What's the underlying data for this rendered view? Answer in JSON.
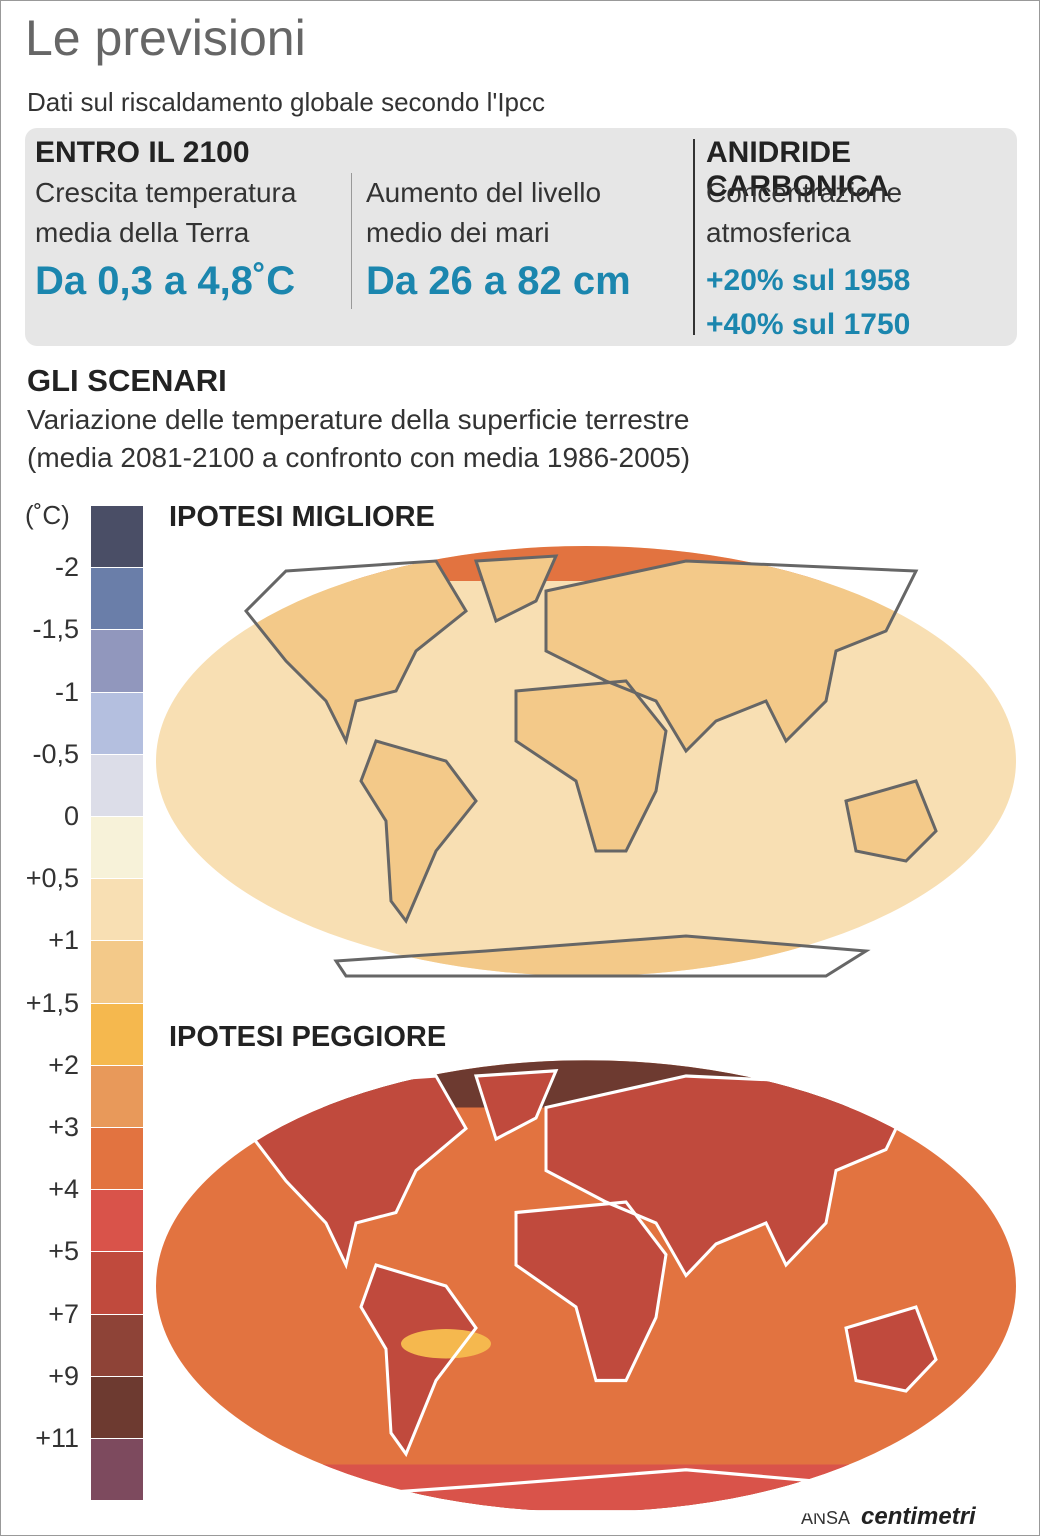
{
  "header": {
    "title": "Le previsioni",
    "subtitle": "Dati sul riscaldamento globale secondo l'Ipcc"
  },
  "box": {
    "left": {
      "heading": "ENTRO IL 2100",
      "columns": [
        {
          "label": [
            "Crescita temperatura",
            "media della Terra"
          ],
          "value": "Da 0,3 a 4,8˚C"
        },
        {
          "label": [
            "Aumento del livello",
            "medio dei mari"
          ],
          "value": "Da 26 a 82 cm"
        }
      ]
    },
    "right": {
      "heading": "ANIDRIDE CARBONICA",
      "label": [
        "Concentrazione",
        "atmosferica"
      ],
      "values": [
        "+20% sul 1958",
        "+40% sul 1750"
      ]
    }
  },
  "scenarios": {
    "heading": "GLI SCENARI",
    "description": [
      "Variazione delle temperature della superficie terrestre",
      "(media 2081-2100 a confronto con media 1986-2005)"
    ]
  },
  "legend": {
    "unit": "(˚C)",
    "labels": [
      "-2",
      "-1,5",
      "-1",
      "-0,5",
      "0",
      "+0,5",
      "+1",
      "+1,5",
      "+2",
      "+3",
      "+4",
      "+5",
      "+7",
      "+9",
      "+11"
    ],
    "colors": [
      "#4a4e66",
      "#6a7ea9",
      "#9197bd",
      "#b4bfdf",
      "#dcdde8",
      "#f7f2d9",
      "#f8dfb3",
      "#f3c989",
      "#f5b84e",
      "#e8995a",
      "#e27340",
      "#d9534a",
      "#c04a3d",
      "#8e4337",
      "#6d3a30",
      "#7d4a5e"
    ]
  },
  "maps": [
    {
      "title": "IPOTESI MIGLIORE"
    },
    {
      "title": "IPOTESI PEGGIORE"
    }
  ],
  "footer": {
    "source": "ANSA",
    "brand": "centimetri"
  }
}
